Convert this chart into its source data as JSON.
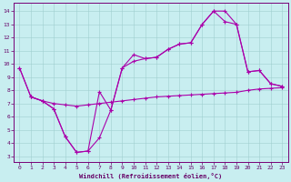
{
  "xlabel": "Windchill (Refroidissement éolien,°C)",
  "background_color": "#c8eef0",
  "grid_color": "#9fcfcf",
  "line_color": "#aa00aa",
  "xlim": [
    -0.5,
    23.5
  ],
  "ylim": [
    2.6,
    14.6
  ],
  "xticks": [
    0,
    1,
    2,
    3,
    4,
    5,
    6,
    7,
    8,
    9,
    10,
    11,
    12,
    13,
    14,
    15,
    16,
    17,
    18,
    19,
    20,
    21,
    22,
    23
  ],
  "yticks": [
    3,
    4,
    5,
    6,
    7,
    8,
    9,
    10,
    11,
    12,
    13,
    14
  ],
  "line1_x": [
    0,
    1,
    2,
    3,
    4,
    5,
    6,
    7,
    8,
    9,
    10,
    11,
    12,
    13,
    14,
    15,
    16,
    17,
    18,
    19,
    20,
    21,
    22,
    23
  ],
  "line1_y": [
    9.7,
    7.5,
    7.2,
    6.6,
    4.5,
    3.3,
    3.4,
    7.9,
    6.5,
    9.7,
    10.7,
    10.4,
    10.5,
    11.1,
    11.5,
    11.6,
    13.0,
    14.0,
    13.2,
    13.0,
    9.4,
    9.5,
    8.5,
    8.3
  ],
  "line2_x": [
    0,
    1,
    2,
    3,
    4,
    5,
    6,
    7,
    8,
    9,
    10,
    11,
    12,
    13,
    14,
    15,
    16,
    17,
    18,
    19,
    20,
    21,
    22,
    23
  ],
  "line2_y": [
    9.7,
    7.5,
    7.2,
    6.6,
    4.5,
    3.3,
    3.4,
    4.4,
    6.5,
    9.7,
    10.2,
    10.4,
    10.5,
    11.1,
    11.5,
    11.6,
    13.0,
    14.0,
    14.0,
    13.0,
    9.4,
    9.5,
    8.5,
    8.3
  ],
  "line3_x": [
    1,
    2,
    3,
    4,
    5,
    6,
    7,
    8,
    9,
    10,
    11,
    12,
    13,
    14,
    15,
    16,
    17,
    18,
    19,
    20,
    21,
    22,
    23
  ],
  "line3_y": [
    7.5,
    7.2,
    7.0,
    6.9,
    6.8,
    6.9,
    7.0,
    7.1,
    7.2,
    7.3,
    7.4,
    7.5,
    7.55,
    7.6,
    7.65,
    7.7,
    7.75,
    7.8,
    7.85,
    8.0,
    8.1,
    8.15,
    8.2
  ]
}
